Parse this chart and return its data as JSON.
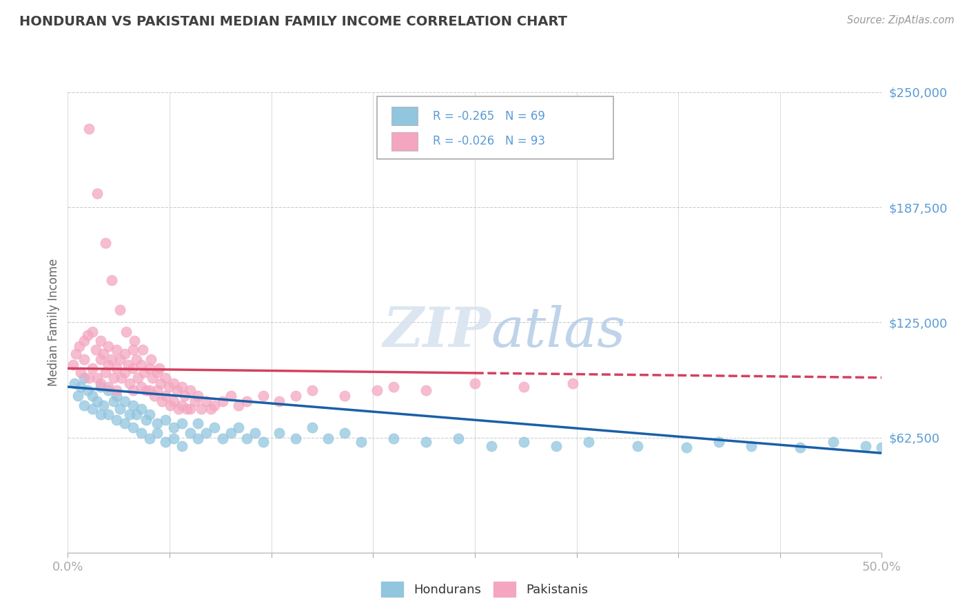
{
  "title": "HONDURAN VS PAKISTANI MEDIAN FAMILY INCOME CORRELATION CHART",
  "source": "Source: ZipAtlas.com",
  "ylabel": "Median Family Income",
  "yticks": [
    0,
    62500,
    125000,
    187500,
    250000
  ],
  "ytick_labels": [
    "",
    "$62,500",
    "$125,000",
    "$187,500",
    "$250,000"
  ],
  "xlim": [
    0.0,
    0.5
  ],
  "ylim": [
    0,
    250000
  ],
  "honduran_color": "#92c5de",
  "pakistani_color": "#f4a6c0",
  "honduran_line_color": "#1a5fa8",
  "pakistani_line_color": "#d44060",
  "honduran_R": -0.265,
  "honduran_N": 69,
  "pakistani_R": -0.026,
  "pakistani_N": 93,
  "watermark_zip": "ZIP",
  "watermark_atlas": "atlas",
  "background_color": "#ffffff",
  "grid_color": "#cccccc",
  "axis_label_color": "#5b9bd5",
  "title_color": "#404040",
  "honduran_scatter_x": [
    0.004,
    0.006,
    0.008,
    0.01,
    0.01,
    0.012,
    0.015,
    0.015,
    0.018,
    0.02,
    0.02,
    0.022,
    0.025,
    0.025,
    0.028,
    0.03,
    0.03,
    0.032,
    0.035,
    0.035,
    0.038,
    0.04,
    0.04,
    0.042,
    0.045,
    0.045,
    0.048,
    0.05,
    0.05,
    0.055,
    0.055,
    0.06,
    0.06,
    0.065,
    0.065,
    0.07,
    0.07,
    0.075,
    0.08,
    0.08,
    0.085,
    0.09,
    0.095,
    0.1,
    0.105,
    0.11,
    0.115,
    0.12,
    0.13,
    0.14,
    0.15,
    0.16,
    0.17,
    0.18,
    0.2,
    0.22,
    0.24,
    0.26,
    0.28,
    0.3,
    0.32,
    0.35,
    0.38,
    0.4,
    0.42,
    0.45,
    0.47,
    0.49,
    0.5
  ],
  "honduran_scatter_y": [
    92000,
    85000,
    90000,
    95000,
    80000,
    88000,
    85000,
    78000,
    82000,
    90000,
    75000,
    80000,
    88000,
    75000,
    82000,
    85000,
    72000,
    78000,
    82000,
    70000,
    75000,
    80000,
    68000,
    75000,
    78000,
    65000,
    72000,
    75000,
    62000,
    70000,
    65000,
    72000,
    60000,
    68000,
    62000,
    70000,
    58000,
    65000,
    70000,
    62000,
    65000,
    68000,
    62000,
    65000,
    68000,
    62000,
    65000,
    60000,
    65000,
    62000,
    68000,
    62000,
    65000,
    60000,
    62000,
    60000,
    62000,
    58000,
    60000,
    58000,
    60000,
    58000,
    57000,
    60000,
    58000,
    57000,
    60000,
    58000,
    57000
  ],
  "pakistani_scatter_x": [
    0.003,
    0.005,
    0.007,
    0.008,
    0.01,
    0.01,
    0.012,
    0.013,
    0.015,
    0.015,
    0.017,
    0.018,
    0.02,
    0.02,
    0.02,
    0.022,
    0.023,
    0.025,
    0.025,
    0.025,
    0.027,
    0.028,
    0.03,
    0.03,
    0.03,
    0.032,
    0.033,
    0.035,
    0.035,
    0.037,
    0.038,
    0.04,
    0.04,
    0.04,
    0.042,
    0.043,
    0.045,
    0.045,
    0.047,
    0.048,
    0.05,
    0.05,
    0.052,
    0.053,
    0.055,
    0.055,
    0.057,
    0.058,
    0.06,
    0.06,
    0.062,
    0.063,
    0.065,
    0.065,
    0.067,
    0.068,
    0.07,
    0.07,
    0.072,
    0.073,
    0.075,
    0.075,
    0.078,
    0.08,
    0.082,
    0.085,
    0.088,
    0.09,
    0.095,
    0.1,
    0.105,
    0.11,
    0.12,
    0.13,
    0.14,
    0.15,
    0.17,
    0.19,
    0.2,
    0.22,
    0.25,
    0.28,
    0.31,
    0.013,
    0.018,
    0.023,
    0.027,
    0.032,
    0.036,
    0.041,
    0.046,
    0.051,
    0.056
  ],
  "pakistani_scatter_y": [
    102000,
    108000,
    112000,
    98000,
    115000,
    105000,
    118000,
    95000,
    120000,
    100000,
    110000,
    95000,
    115000,
    105000,
    92000,
    108000,
    98000,
    112000,
    102000,
    90000,
    105000,
    95000,
    110000,
    100000,
    88000,
    105000,
    95000,
    108000,
    98000,
    102000,
    92000,
    110000,
    100000,
    88000,
    105000,
    95000,
    102000,
    90000,
    98000,
    88000,
    100000,
    88000,
    95000,
    85000,
    98000,
    88000,
    92000,
    82000,
    95000,
    85000,
    90000,
    80000,
    92000,
    82000,
    88000,
    78000,
    90000,
    80000,
    85000,
    78000,
    88000,
    78000,
    82000,
    85000,
    78000,
    82000,
    78000,
    80000,
    82000,
    85000,
    80000,
    82000,
    85000,
    82000,
    85000,
    88000,
    85000,
    88000,
    90000,
    88000,
    92000,
    90000,
    92000,
    230000,
    195000,
    168000,
    148000,
    132000,
    120000,
    115000,
    110000,
    105000,
    100000
  ]
}
